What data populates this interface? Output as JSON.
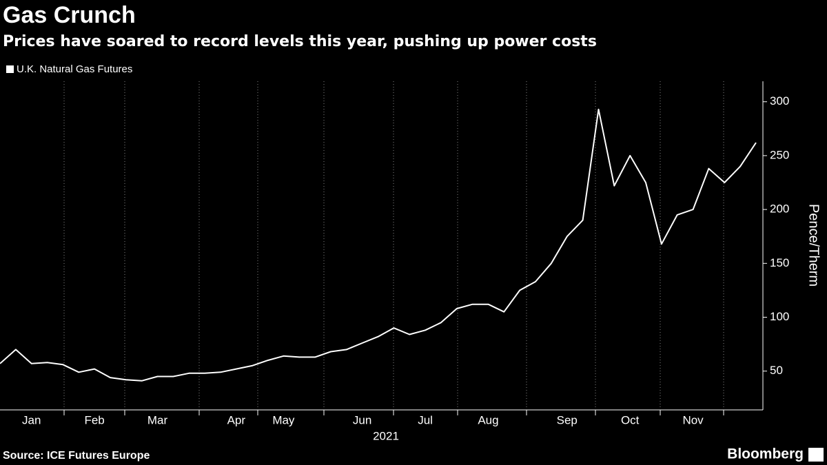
{
  "chart_data": {
    "type": "line",
    "title": "Gas Crunch",
    "subtitle": "Prices have soared to record levels this year, pushing up power costs",
    "y_label": "Pence/Therm",
    "x_label": "2021",
    "source": "Source: ICE Futures Europe",
    "brand": "Bloomberg",
    "categories": [
      null,
      null,
      "Jan",
      null,
      null,
      null,
      "Feb",
      null,
      null,
      null,
      "Mar",
      null,
      null,
      null,
      null,
      "Apr",
      null,
      null,
      "May",
      null,
      null,
      null,
      null,
      "Jun",
      null,
      null,
      null,
      "Jul",
      null,
      null,
      null,
      "Aug",
      null,
      null,
      null,
      null,
      "Sep",
      null,
      null,
      null,
      "Oct",
      null,
      null,
      null,
      "Nov",
      null,
      null,
      null,
      null
    ],
    "series": [
      {
        "name": "U.K. Natural Gas Futures",
        "color": "#ffffff",
        "values": [
          57,
          70,
          57,
          58,
          56,
          49,
          52,
          44,
          42,
          41,
          45,
          45,
          48,
          48,
          49,
          52,
          55,
          60,
          64,
          63,
          63,
          68,
          70,
          76,
          82,
          90,
          84,
          88,
          95,
          108,
          112,
          112,
          105,
          125,
          133,
          150,
          175,
          190,
          293,
          222,
          250,
          225,
          168,
          195,
          200,
          238,
          225,
          240,
          262
        ]
      }
    ],
    "ylim": [
      14,
      319
    ],
    "yticks": [
      50,
      100,
      150,
      200,
      250,
      300
    ],
    "grid": true
  }
}
